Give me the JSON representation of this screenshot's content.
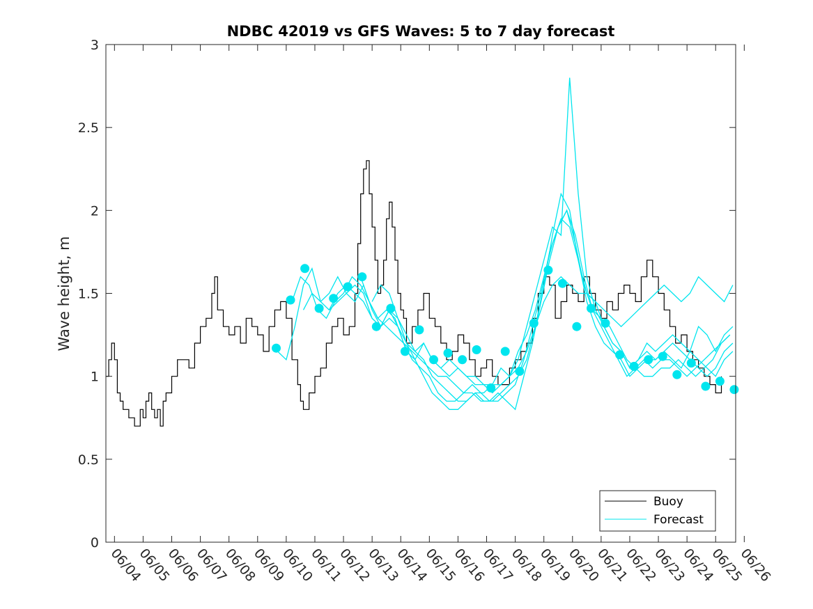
{
  "chart_data": {
    "type": "line",
    "title": "NDBC 42019 vs GFS Waves: 5 to 7 day forecast",
    "xlabel": "",
    "ylabel": "Wave height, m",
    "ylim": [
      0,
      3
    ],
    "yticks": [
      0,
      0.5,
      1,
      1.5,
      2,
      2.5,
      3
    ],
    "ytick_labels": [
      "0",
      "0.5",
      "1",
      "1.5",
      "2",
      "2.5",
      "3"
    ],
    "xlim_day": [
      3.7,
      25.7
    ],
    "xtick_labels": [
      "06/04",
      "06/05",
      "06/06",
      "06/07",
      "06/08",
      "06/09",
      "06/10",
      "06/11",
      "06/12",
      "06/13",
      "06/14",
      "06/15",
      "06/16",
      "06/17",
      "06/18",
      "06/19",
      "06/20",
      "06/21",
      "06/22",
      "06/23",
      "06/24",
      "06/25",
      "06/26"
    ],
    "grid": false,
    "legend_position": "bottom-right",
    "colors": {
      "buoy": "#000000",
      "forecast": "#00e5ee"
    },
    "series": [
      {
        "name": "Buoy",
        "x": [
          3.7,
          3.8,
          3.9,
          4.0,
          4.1,
          4.2,
          4.3,
          4.4,
          4.5,
          4.7,
          4.9,
          5.0,
          5.1,
          5.2,
          5.3,
          5.4,
          5.5,
          5.6,
          5.7,
          5.8,
          6.0,
          6.2,
          6.4,
          6.6,
          6.8,
          7.0,
          7.2,
          7.4,
          7.5,
          7.6,
          7.8,
          8.0,
          8.2,
          8.4,
          8.6,
          8.8,
          9.0,
          9.2,
          9.4,
          9.6,
          9.8,
          10.0,
          10.2,
          10.4,
          10.5,
          10.6,
          10.8,
          11.0,
          11.2,
          11.4,
          11.6,
          11.8,
          12.0,
          12.2,
          12.4,
          12.5,
          12.6,
          12.7,
          12.8,
          12.9,
          13.0,
          13.1,
          13.2,
          13.3,
          13.4,
          13.5,
          13.6,
          13.7,
          13.8,
          13.9,
          14.0,
          14.1,
          14.2,
          14.4,
          14.6,
          14.8,
          15.0,
          15.2,
          15.4,
          15.6,
          15.8,
          16.0,
          16.2,
          16.4,
          16.6,
          16.8,
          17.0,
          17.2,
          17.4,
          17.6,
          17.8,
          18.0,
          18.2,
          18.4,
          18.6,
          18.8,
          19.0,
          19.2,
          19.4,
          19.6,
          19.8,
          20.0,
          20.2,
          20.4,
          20.6,
          20.8,
          21.0,
          21.2,
          21.4,
          21.6,
          21.8,
          22.0,
          22.2,
          22.4,
          22.6,
          22.8,
          23.0,
          23.2,
          23.4,
          23.6,
          23.8,
          24.0,
          24.2,
          24.4,
          24.6,
          24.8,
          25.0,
          25.2
        ],
        "y": [
          1.0,
          1.1,
          1.2,
          1.1,
          0.9,
          0.85,
          0.8,
          0.8,
          0.75,
          0.7,
          0.8,
          0.75,
          0.85,
          0.9,
          0.8,
          0.75,
          0.8,
          0.7,
          0.85,
          0.9,
          1.0,
          1.1,
          1.1,
          1.05,
          1.2,
          1.3,
          1.35,
          1.5,
          1.6,
          1.4,
          1.3,
          1.25,
          1.3,
          1.2,
          1.35,
          1.3,
          1.25,
          1.15,
          1.3,
          1.4,
          1.45,
          1.35,
          1.1,
          0.95,
          0.85,
          0.8,
          0.9,
          1.0,
          1.05,
          1.2,
          1.3,
          1.35,
          1.25,
          1.3,
          1.5,
          1.8,
          2.1,
          2.25,
          2.3,
          2.1,
          1.9,
          1.7,
          1.5,
          1.55,
          1.7,
          1.95,
          2.05,
          1.9,
          1.7,
          1.5,
          1.4,
          1.35,
          1.2,
          1.3,
          1.4,
          1.5,
          1.35,
          1.3,
          1.2,
          1.1,
          1.15,
          1.25,
          1.2,
          1.1,
          1.0,
          1.05,
          1.1,
          1.0,
          0.95,
          0.95,
          1.05,
          1.1,
          1.15,
          1.2,
          1.35,
          1.5,
          1.6,
          1.55,
          1.35,
          1.45,
          1.55,
          1.5,
          1.45,
          1.6,
          1.5,
          1.4,
          1.35,
          1.45,
          1.4,
          1.5,
          1.55,
          1.5,
          1.45,
          1.6,
          1.7,
          1.6,
          1.5,
          1.4,
          1.3,
          1.2,
          1.25,
          1.15,
          1.1,
          1.05,
          1.0,
          0.95,
          0.9,
          1.0
        ]
      },
      {
        "name": "Forecast",
        "lines": [
          {
            "x": [
              9.7,
              10.0,
              10.3,
              10.6,
              10.9,
              11.2,
              11.5,
              11.8,
              12.1,
              12.4,
              12.7,
              13.0,
              13.3,
              13.6,
              13.9,
              14.2,
              14.5,
              14.8,
              15.1,
              15.4,
              15.7,
              16.0,
              16.3,
              16.6,
              16.9,
              17.2,
              17.5,
              17.8,
              18.1,
              18.4,
              18.7,
              19.0,
              19.3,
              19.6,
              19.9,
              20.2,
              20.5,
              20.8,
              21.1,
              21.4,
              21.7,
              22.0,
              22.3,
              22.6,
              22.9,
              23.2,
              23.5,
              23.8,
              24.1,
              24.4,
              24.7,
              25.0,
              25.3,
              25.6
            ],
            "y": [
              1.15,
              1.1,
              1.3,
              1.55,
              1.65,
              1.45,
              1.4,
              1.45,
              1.5,
              1.55,
              1.5,
              1.35,
              1.3,
              1.4,
              1.3,
              1.15,
              1.1,
              1.2,
              1.1,
              1.05,
              1.0,
              1.05,
              1.0,
              0.95,
              0.95,
              0.95,
              1.05,
              1.0,
              1.15,
              1.25,
              1.4,
              1.6,
              1.8,
              1.95,
              1.9,
              1.7,
              1.5,
              1.45,
              1.3,
              1.2,
              1.15,
              1.05,
              1.1,
              1.15,
              1.1,
              1.15,
              1.2,
              1.15,
              1.1,
              1.05,
              1.0,
              1.05,
              1.15,
              1.2
            ]
          },
          {
            "x": [
              10.2,
              10.5,
              10.8,
              11.1,
              11.4,
              11.7,
              12.0,
              12.3,
              12.6,
              12.9,
              13.2,
              13.5,
              13.8,
              14.1,
              14.4,
              14.7,
              15.0,
              15.3,
              15.6,
              15.9,
              16.2,
              16.5,
              16.8,
              17.1,
              17.4,
              17.7,
              18.0,
              18.3,
              18.6,
              18.9,
              19.2,
              19.5,
              19.8,
              20.1,
              20.4,
              20.7,
              21.0,
              21.3,
              21.6,
              21.9,
              22.2,
              22.5,
              22.8,
              23.1,
              23.4,
              23.7,
              24.0,
              24.3,
              24.6,
              24.9,
              25.2,
              25.5
            ],
            "y": [
              1.45,
              1.6,
              1.55,
              1.4,
              1.35,
              1.45,
              1.5,
              1.6,
              1.55,
              1.45,
              1.35,
              1.4,
              1.35,
              1.2,
              1.1,
              1.05,
              1.0,
              0.9,
              0.85,
              0.85,
              0.9,
              0.95,
              0.9,
              0.85,
              0.85,
              0.9,
              0.95,
              1.1,
              1.3,
              1.5,
              1.75,
              1.9,
              2.0,
              1.85,
              1.6,
              1.4,
              1.3,
              1.2,
              1.1,
              1.0,
              1.05,
              1.1,
              1.05,
              1.1,
              1.1,
              1.05,
              1.0,
              1.05,
              1.1,
              1.15,
              1.2,
              1.25
            ]
          },
          {
            "x": [
              10.6,
              10.9,
              11.2,
              11.5,
              11.8,
              12.1,
              12.4,
              12.7,
              13.0,
              13.3,
              13.6,
              13.9,
              14.2,
              14.5,
              14.8,
              15.1,
              15.4,
              15.7,
              16.0,
              16.3,
              16.6,
              16.9,
              17.2,
              17.5,
              17.8,
              18.1,
              18.4,
              18.7,
              19.0,
              19.3,
              19.6,
              19.9,
              20.2,
              20.5,
              20.8,
              21.1,
              21.4,
              21.7,
              22.0,
              22.3,
              22.6,
              22.9,
              23.2,
              23.5,
              23.8,
              24.1,
              24.4,
              24.7,
              25.0,
              25.3,
              25.6
            ],
            "y": [
              1.4,
              1.5,
              1.45,
              1.5,
              1.6,
              1.5,
              1.45,
              1.55,
              1.4,
              1.3,
              1.35,
              1.3,
              1.2,
              1.1,
              1.0,
              0.9,
              0.85,
              0.8,
              0.8,
              0.85,
              0.9,
              0.85,
              0.85,
              0.9,
              0.95,
              1.0,
              1.1,
              1.3,
              1.55,
              1.85,
              2.1,
              2.0,
              1.7,
              1.45,
              1.3,
              1.2,
              1.15,
              1.1,
              1.0,
              1.05,
              1.1,
              1.1,
              1.15,
              1.1,
              1.05,
              1.15,
              1.3,
              1.25,
              1.15,
              1.25,
              1.3
            ]
          },
          {
            "x": [
              11.5,
              11.8,
              12.1,
              12.4,
              12.7,
              13.0,
              13.3,
              13.6,
              13.9,
              14.2,
              14.5,
              14.8,
              15.1,
              15.4,
              15.7,
              16.0,
              16.3,
              16.6,
              16.9,
              17.2,
              17.5,
              17.8,
              18.1,
              18.4,
              18.7,
              19.0,
              19.3,
              19.6,
              19.9,
              20.2,
              20.5,
              20.8,
              21.1,
              21.4,
              21.7,
              22.0,
              22.3,
              22.6,
              22.9,
              23.2,
              23.5,
              23.8,
              24.1,
              24.4,
              24.7,
              25.0,
              25.3,
              25.6
            ],
            "y": [
              1.4,
              1.5,
              1.55,
              1.5,
              1.45,
              1.35,
              1.3,
              1.4,
              1.35,
              1.25,
              1.15,
              1.1,
              1.0,
              0.95,
              0.9,
              0.85,
              0.85,
              0.9,
              0.9,
              0.95,
              0.95,
              1.0,
              1.1,
              1.3,
              1.5,
              1.7,
              1.9,
              1.85,
              2.8,
              2.1,
              1.6,
              1.4,
              1.3,
              1.2,
              1.15,
              1.05,
              1.1,
              1.2,
              1.15,
              1.2,
              1.25,
              1.2,
              1.15,
              1.1,
              1.05,
              1.0,
              1.1,
              1.15
            ]
          },
          {
            "x": [
              12.6,
              12.9,
              13.2,
              13.5,
              13.8,
              14.1,
              14.4,
              14.7,
              15.0,
              15.3,
              15.6,
              15.9,
              16.2,
              16.5,
              16.8,
              17.1,
              17.4,
              17.7,
              18.0,
              18.3,
              18.6,
              18.9,
              19.2,
              19.5,
              19.8,
              20.1,
              20.4,
              20.7,
              21.0,
              21.3,
              21.6,
              21.9,
              22.2,
              22.5,
              22.8,
              23.1,
              23.4,
              23.7,
              24.0,
              24.3,
              24.6,
              24.9,
              25.2,
              25.5
            ],
            "y": [
              1.6,
              1.45,
              1.35,
              1.3,
              1.25,
              1.2,
              1.15,
              1.1,
              1.05,
              1.0,
              1.0,
              0.95,
              0.9,
              0.9,
              0.85,
              0.85,
              0.9,
              0.85,
              0.8,
              1.0,
              1.2,
              1.45,
              1.7,
              1.9,
              2.0,
              1.8,
              1.55,
              1.4,
              1.35,
              1.3,
              1.2,
              1.1,
              1.05,
              1.0,
              1.0,
              1.05,
              1.05,
              1.1,
              1.05,
              1.0,
              1.05,
              1.1,
              1.2,
              1.25
            ]
          },
          {
            "x": [
              13.0,
              13.3,
              13.6,
              13.9,
              14.2,
              14.5,
              14.8,
              15.1,
              15.4,
              15.7,
              16.0,
              16.3,
              16.6,
              16.9,
              17.2,
              17.5,
              17.8,
              18.1,
              18.4,
              18.7,
              19.0,
              19.3,
              19.6,
              19.9,
              20.2,
              20.5,
              20.8,
              21.1,
              21.4,
              21.7,
              22.0,
              22.3,
              22.6,
              22.9,
              23.2,
              23.5,
              23.8,
              24.1,
              24.4,
              24.7,
              25.0,
              25.3,
              25.6
            ],
            "y": [
              1.45,
              1.55,
              1.5,
              1.35,
              1.2,
              1.15,
              1.2,
              1.1,
              1.05,
              1.1,
              1.05,
              1.0,
              1.0,
              0.95,
              0.9,
              0.95,
              1.0,
              1.05,
              1.15,
              1.3,
              1.45,
              1.55,
              1.6,
              1.55,
              1.5,
              1.5,
              1.45,
              1.4,
              1.35,
              1.3,
              1.35,
              1.4,
              1.45,
              1.5,
              1.55,
              1.5,
              1.45,
              1.5,
              1.6,
              1.55,
              1.5,
              1.45,
              1.55
            ]
          }
        ],
        "markers": {
          "x": [
            9.65,
            10.15,
            10.65,
            11.15,
            11.65,
            12.15,
            12.65,
            13.15,
            13.65,
            14.15,
            14.65,
            15.15,
            15.65,
            16.15,
            16.65,
            17.15,
            17.65,
            18.15,
            18.65,
            19.15,
            19.65,
            20.15,
            20.65,
            21.15,
            21.65,
            22.15,
            22.65,
            23.15,
            23.65,
            24.15,
            24.65,
            25.15,
            25.65
          ],
          "y": [
            1.17,
            1.46,
            1.65,
            1.41,
            1.47,
            1.54,
            1.6,
            1.3,
            1.41,
            1.15,
            1.28,
            1.1,
            1.14,
            1.1,
            1.16,
            0.93,
            1.15,
            1.03,
            1.32,
            1.64,
            1.56,
            1.3,
            1.41,
            1.32,
            1.13,
            1.06,
            1.1,
            1.12,
            1.01,
            1.08,
            0.94,
            0.97,
            0.92
          ]
        }
      }
    ]
  }
}
